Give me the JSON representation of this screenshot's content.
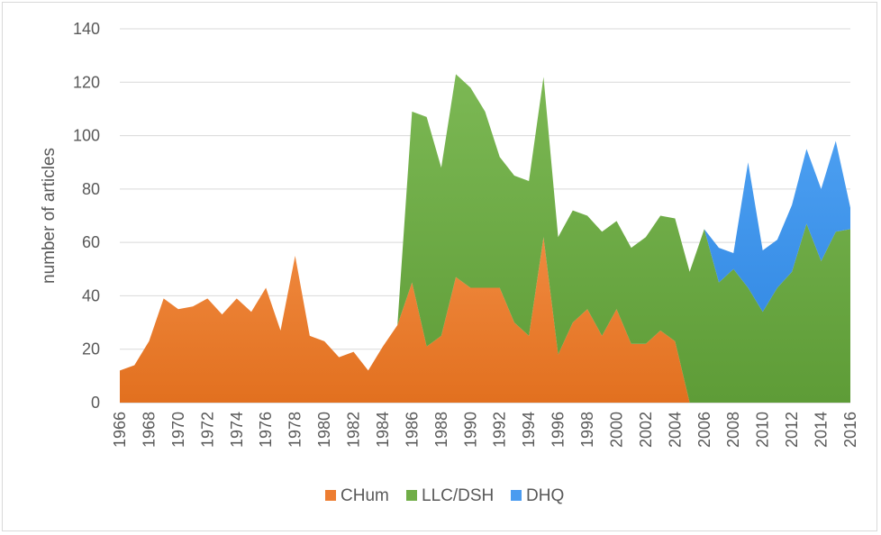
{
  "chart_data": {
    "type": "area",
    "stacked": true,
    "title": "",
    "xlabel": "",
    "ylabel": "number of articles",
    "ylim": [
      0,
      140
    ],
    "yticks": [
      "0",
      "20",
      "40",
      "60",
      "80",
      "100",
      "120",
      "140"
    ],
    "x": [
      1966,
      1967,
      1968,
      1969,
      1970,
      1971,
      1972,
      1973,
      1974,
      1975,
      1976,
      1977,
      1978,
      1979,
      1980,
      1981,
      1982,
      1983,
      1984,
      1985,
      1986,
      1987,
      1988,
      1989,
      1990,
      1991,
      1992,
      1993,
      1994,
      1995,
      1996,
      1997,
      1998,
      1999,
      2000,
      2001,
      2002,
      2003,
      2004,
      2005,
      2006,
      2007,
      2008,
      2009,
      2010,
      2011,
      2012,
      2013,
      2014,
      2015,
      2016
    ],
    "xtick_labels": [
      "1966",
      "1968",
      "1970",
      "1972",
      "1974",
      "1976",
      "1978",
      "1980",
      "1982",
      "1984",
      "1986",
      "1988",
      "1990",
      "1992",
      "1994",
      "1996",
      "1998",
      "2000",
      "2002",
      "2004",
      "2006",
      "2008",
      "2010",
      "2012",
      "2014",
      "2016"
    ],
    "grid": "horizontal",
    "legend_position": "bottom",
    "series": [
      {
        "name": "CHum",
        "color": "#ed7d31",
        "values": [
          12,
          14,
          23,
          39,
          35,
          36,
          39,
          33,
          39,
          34,
          43,
          27,
          55,
          25,
          23,
          17,
          19,
          12,
          21,
          29,
          45,
          21,
          25,
          47,
          43,
          43,
          43,
          30,
          25,
          62,
          18,
          30,
          35,
          25,
          35,
          22,
          22,
          27,
          23,
          0,
          0,
          0,
          0,
          0,
          0,
          0,
          0,
          0,
          0,
          0,
          0
        ]
      },
      {
        "name": "LLC/DSH",
        "color": "#70ad47",
        "values": [
          0,
          0,
          0,
          0,
          0,
          0,
          0,
          0,
          0,
          0,
          0,
          0,
          0,
          0,
          0,
          0,
          0,
          0,
          0,
          0,
          64,
          86,
          63,
          76,
          75,
          66,
          49,
          55,
          58,
          60,
          44,
          42,
          35,
          39,
          33,
          36,
          40,
          43,
          46,
          49,
          65,
          45,
          50,
          43,
          34,
          43,
          49,
          67,
          53,
          64,
          65
        ]
      },
      {
        "name": "DHQ",
        "color": "#4a9bf0",
        "values": [
          0,
          0,
          0,
          0,
          0,
          0,
          0,
          0,
          0,
          0,
          0,
          0,
          0,
          0,
          0,
          0,
          0,
          0,
          0,
          0,
          0,
          0,
          0,
          0,
          0,
          0,
          0,
          0,
          0,
          0,
          0,
          0,
          0,
          0,
          0,
          0,
          0,
          0,
          0,
          0,
          0,
          13,
          6,
          47,
          23,
          18,
          25,
          28,
          27,
          34,
          8
        ]
      }
    ]
  }
}
